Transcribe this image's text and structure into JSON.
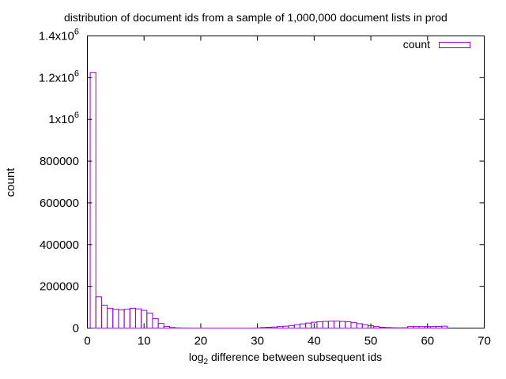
{
  "chart_data": {
    "type": "bar",
    "title": "distribution of document ids from a sample of 1,000,000 document lists in prod",
    "xlabel_prefix": "log",
    "xlabel_subscript": "2",
    "xlabel_suffix": " difference between subsequent ids",
    "ylabel": "count",
    "xlim": [
      0,
      70
    ],
    "ylim": [
      0,
      1400000
    ],
    "x_ticks": [
      0,
      10,
      20,
      30,
      40,
      50,
      60,
      70
    ],
    "y_ticks": [
      {
        "value": 0,
        "base": "0",
        "sup": ""
      },
      {
        "value": 200000,
        "base": "200000",
        "sup": ""
      },
      {
        "value": 400000,
        "base": "400000",
        "sup": ""
      },
      {
        "value": 600000,
        "base": "600000",
        "sup": ""
      },
      {
        "value": 800000,
        "base": "800000",
        "sup": ""
      },
      {
        "value": 1000000,
        "base": "1x10",
        "sup": "6"
      },
      {
        "value": 1200000,
        "base": "1.2x10",
        "sup": "6"
      },
      {
        "value": 1400000,
        "base": "1.4x10",
        "sup": "6"
      }
    ],
    "grid": false,
    "legend": {
      "position": "top-right",
      "entries": [
        "count"
      ]
    },
    "series": [
      {
        "name": "count",
        "color": "#9400d3",
        "x": [
          1,
          2,
          3,
          4,
          5,
          6,
          7,
          8,
          9,
          10,
          11,
          12,
          13,
          14,
          15,
          16,
          17,
          18,
          19,
          20,
          21,
          22,
          23,
          24,
          25,
          26,
          27,
          28,
          29,
          30,
          31,
          32,
          33,
          34,
          35,
          36,
          37,
          38,
          39,
          40,
          41,
          42,
          43,
          44,
          45,
          46,
          47,
          48,
          49,
          50,
          51,
          52,
          53,
          54,
          55,
          56,
          57,
          58,
          59,
          60,
          61,
          62,
          63
        ],
        "values": [
          1225000,
          150000,
          110000,
          95000,
          90000,
          88000,
          90000,
          95000,
          92000,
          85000,
          72000,
          45000,
          22000,
          8000,
          2500,
          1000,
          400,
          200,
          100,
          50,
          30,
          20,
          15,
          10,
          10,
          10,
          10,
          10,
          10,
          200,
          2500,
          3500,
          5000,
          7000,
          9000,
          12000,
          16000,
          20000,
          24000,
          28000,
          30000,
          32000,
          33000,
          33000,
          32000,
          30000,
          26000,
          21000,
          16000,
          11000,
          7000,
          4000,
          2500,
          1500,
          1000,
          1500,
          7000,
          7000,
          7000,
          7000,
          7000,
          8000,
          9000
        ]
      }
    ]
  }
}
